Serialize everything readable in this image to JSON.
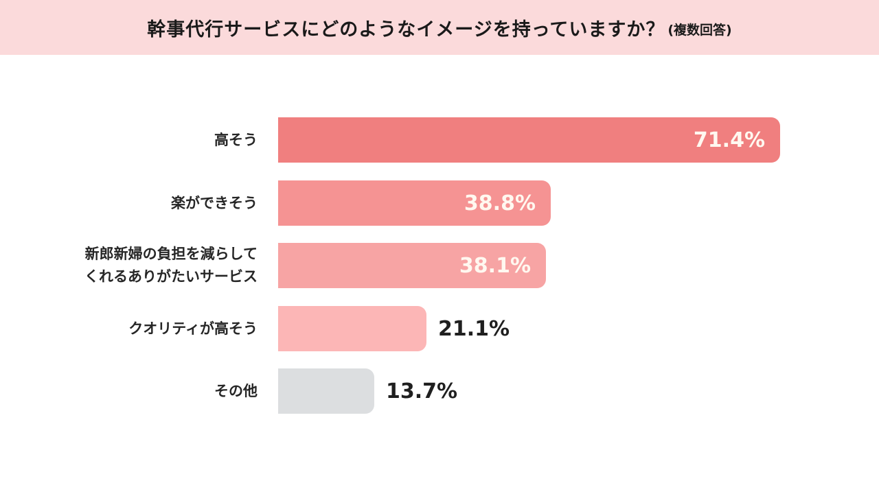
{
  "header": {
    "title": "幹事代行サービスにどのようなイメージを持っていますか？",
    "suffix": "(複数回答)",
    "background": "#fbdadb"
  },
  "chart_data": {
    "type": "bar",
    "orientation": "horizontal",
    "title": "幹事代行サービスにどのようなイメージを持っていますか？(複数回答)",
    "xlabel": "",
    "ylabel": "",
    "unit": "%",
    "xlim": [
      0,
      100
    ],
    "grid": false,
    "legend": null,
    "categories": [
      "高そう",
      "楽ができそう",
      "新郎新婦の負担を減らしてくれるありがたいサービス",
      "クオリティが高そう",
      "その他"
    ],
    "values": [
      71.4,
      38.8,
      38.1,
      21.1,
      13.7
    ],
    "bars": [
      {
        "label": "高そう",
        "value": 71.4,
        "display": "71.4%",
        "color": "#f07f7f",
        "label_position": "inside"
      },
      {
        "label": "楽ができそう",
        "value": 38.8,
        "display": "38.8%",
        "color": "#f59393",
        "label_position": "inside"
      },
      {
        "label": "新郎新婦の負担を減らして\nくれるありがたいサービス",
        "value": 38.1,
        "display": "38.1%",
        "color": "#f7a4a4",
        "label_position": "inside"
      },
      {
        "label": "クオリティが高そう",
        "value": 21.1,
        "display": "21.1%",
        "color": "#fcb6b6",
        "label_position": "outside"
      },
      {
        "label": "その他",
        "value": 13.7,
        "display": "13.7%",
        "color": "#dcdee0",
        "label_position": "outside"
      }
    ]
  }
}
